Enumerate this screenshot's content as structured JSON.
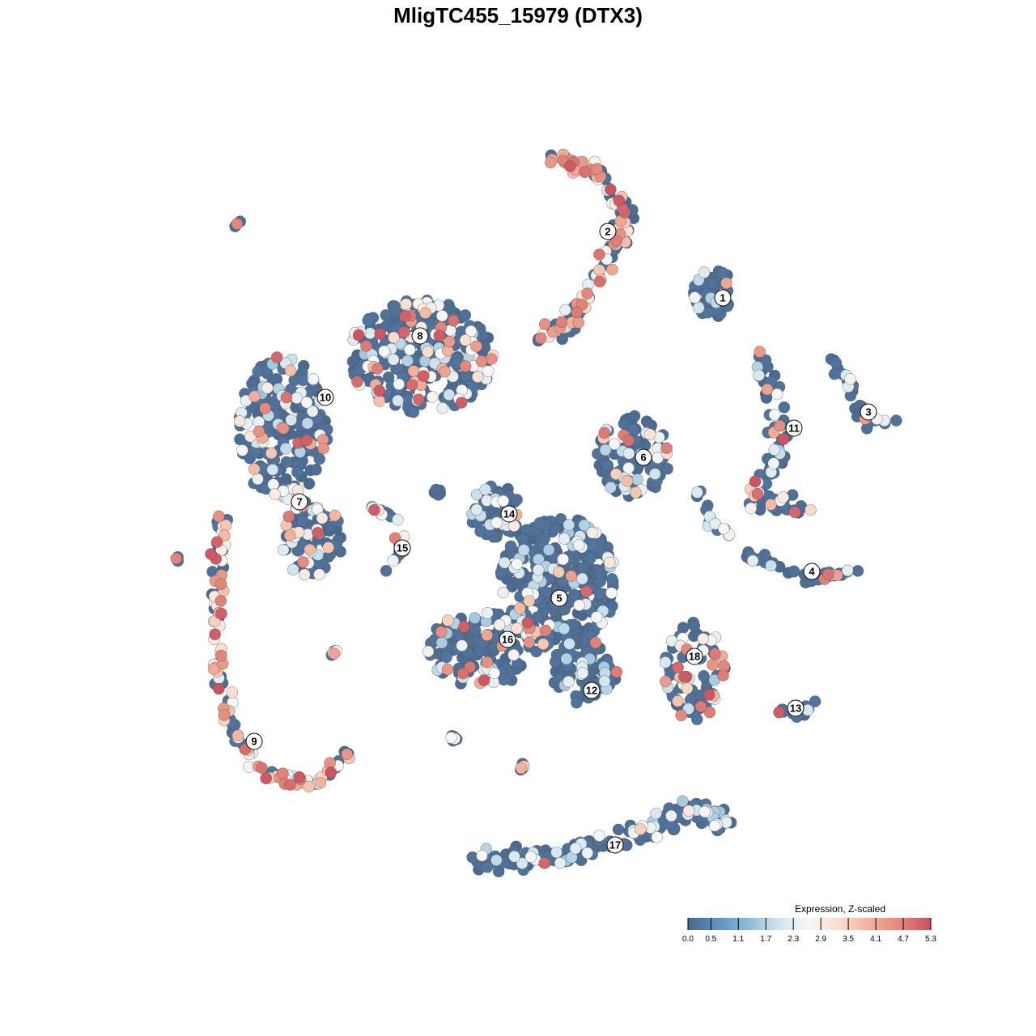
{
  "chart_data": {
    "type": "scatter",
    "title": "MligTC455_15979 (DTX3)",
    "xlabel": "",
    "ylabel": "",
    "grid": false,
    "axes": false,
    "clusters": [
      {
        "label": "1",
        "relative_expression": 0.05
      },
      {
        "label": "2",
        "relative_expression": 0.55
      },
      {
        "label": "3",
        "relative_expression": 0.1
      },
      {
        "label": "4",
        "relative_expression": 0.1
      },
      {
        "label": "5",
        "relative_expression": 0.05
      },
      {
        "label": "6",
        "relative_expression": 0.1
      },
      {
        "label": "7",
        "relative_expression": 0.3
      },
      {
        "label": "8",
        "relative_expression": 0.2
      },
      {
        "label": "9",
        "relative_expression": 0.6
      },
      {
        "label": "10",
        "relative_expression": 0.12
      },
      {
        "label": "11",
        "relative_expression": 0.15
      },
      {
        "label": "12",
        "relative_expression": 0.06
      },
      {
        "label": "13",
        "relative_expression": 0.05
      },
      {
        "label": "14",
        "relative_expression": 0.1
      },
      {
        "label": "15",
        "relative_expression": 0.2
      },
      {
        "label": "16",
        "relative_expression": 0.08
      },
      {
        "label": "17",
        "relative_expression": 0.02
      },
      {
        "label": "18",
        "relative_expression": 0.3
      }
    ],
    "legend": {
      "title": "Expression, Z-scaled",
      "position": "bottom-right",
      "ticks": [
        "0.0",
        "0.5",
        "1.1",
        "1.7",
        "2.3",
        "2.9",
        "3.5",
        "4.1",
        "4.7",
        "5.3"
      ],
      "range": [
        0.0,
        5.3
      ],
      "colors": [
        "#4a6890",
        "#5f92c0",
        "#8fbcd8",
        "#d2e5ef",
        "#f7f7f7",
        "#fbdccb",
        "#f2b099",
        "#e3867c",
        "#c9505f"
      ]
    }
  }
}
